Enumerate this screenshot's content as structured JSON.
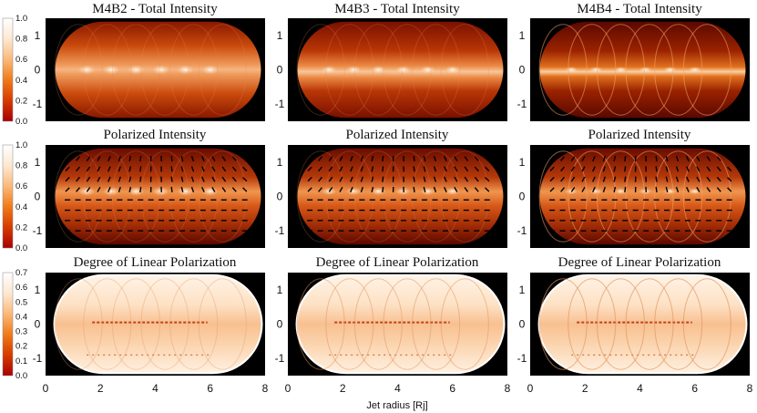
{
  "chart_data": {
    "type": "heatmap",
    "layout": "3x3 grid of simulated jet images",
    "xlabel": "Jet radius [Rj]",
    "xticks": [
      "0",
      "2",
      "4",
      "6",
      "8"
    ],
    "xlim": [
      0,
      8
    ],
    "yticks": [
      "1",
      "0",
      "-1"
    ],
    "ylim": [
      -1.5,
      1.5
    ],
    "colormap": "black-red-orange-white",
    "colorbar_colors": [
      "#a80000",
      "#d63a00",
      "#f07a1a",
      "#fbb97a",
      "#fde8d2",
      "#ffffff"
    ],
    "rows": [
      {
        "id": "total",
        "colorbar_ticks": [
          "1.0",
          "0.8",
          "0.6",
          "0.4",
          "0.2",
          "0.0"
        ],
        "panels": [
          {
            "title": "M4B2 - Total Intensity",
            "model": "M4B2"
          },
          {
            "title": "M4B3 - Total Intensity",
            "model": "M4B3"
          },
          {
            "title": "M4B4 - Total Intensity",
            "model": "M4B4"
          }
        ]
      },
      {
        "id": "polarized",
        "colorbar_ticks": [
          "1.0",
          "0.8",
          "0.6",
          "0.4",
          "0.2",
          "0.0"
        ],
        "panels": [
          {
            "title": "Polarized Intensity",
            "model": "M4B2"
          },
          {
            "title": "Polarized Intensity",
            "model": "M4B3"
          },
          {
            "title": "Polarized Intensity",
            "model": "M4B4"
          }
        ]
      },
      {
        "id": "degree",
        "colorbar_ticks": [
          "0.7",
          "0.6",
          "0.5",
          "0.4",
          "0.3",
          "0.2",
          "0.1",
          "0.0"
        ],
        "panels": [
          {
            "title": "Degree of Linear Polarization",
            "model": "M4B2"
          },
          {
            "title": "Degree of Linear Polarization",
            "model": "M4B3"
          },
          {
            "title": "Degree of Linear Polarization",
            "model": "M4B4"
          }
        ]
      }
    ]
  }
}
